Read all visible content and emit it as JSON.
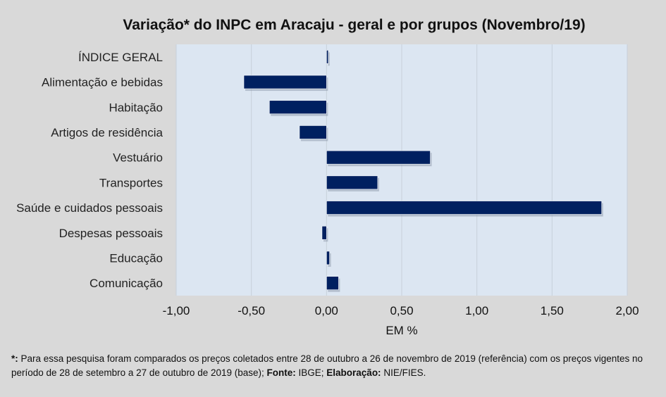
{
  "chart_data": {
    "type": "bar",
    "orientation": "horizontal",
    "title": "Variação* do INPC em Aracaju - geral e por grupos (Novembro/19)",
    "xlabel": "EM %",
    "ylabel": "",
    "xlim": [
      -1.0,
      2.0
    ],
    "xticks": [
      -1.0,
      -0.5,
      0.0,
      0.5,
      1.0,
      1.5,
      2.0
    ],
    "xtick_labels": [
      "-1,00",
      "-0,50",
      "0,00",
      "0,50",
      "1,00",
      "1,50",
      "2,00"
    ],
    "grid": true,
    "categories": [
      "ÍNDICE GERAL",
      "Alimentação e bebidas",
      "Habitação",
      "Artigos de residência",
      "Vestuário",
      "Transportes",
      "Saúde e cuidados pessoais",
      "Despesas pessoais",
      "Educação",
      "Comunicação"
    ],
    "values": [
      0.01,
      -0.55,
      -0.38,
      -0.18,
      0.69,
      0.34,
      1.83,
      -0.03,
      0.02,
      0.08
    ],
    "colors": {
      "bar": "#002060",
      "plot_bg": "#dce6f2",
      "page_bg": "#d9d9d9"
    }
  },
  "note": {
    "star": "*:",
    "text1": " Para essa pesquisa foram comparados os preços coletados entre 28 de outubro a 26 de novembro de 2019 (referência) com os preços vigentes no período de 28 de setembro a 27 de outubro de 2019 (base); ",
    "fonte_label": "Fonte:",
    "fonte": " IBGE; ",
    "elab_label": "Elaboração:",
    "elab": " NIE/FIES."
  }
}
